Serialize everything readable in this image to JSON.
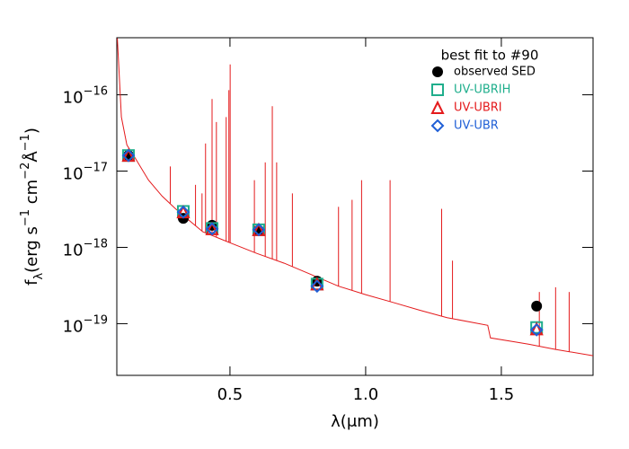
{
  "chart_data": {
    "type": "line",
    "xlabel": "λ(μm)",
    "ylabel_parts": [
      {
        "text": "f"
      },
      {
        "text": "λ",
        "shift": "sub"
      },
      {
        "text": "(erg s"
      },
      {
        "text": "−1",
        "shift": "sup"
      },
      {
        "text": " cm"
      },
      {
        "text": "−2",
        "shift": "sup"
      },
      {
        "text": "Å"
      },
      {
        "text": "−1",
        "shift": "sup"
      },
      {
        "text": ")"
      }
    ],
    "log_y": true,
    "xlim": [
      0.083,
      1.838
    ],
    "ylim": [
      2.1e-20,
      5.6e-16
    ],
    "xticks": [
      0.5,
      {
        "value": 1,
        "label": "1.0"
      },
      1.5
    ],
    "yticks": [
      {
        "value": 1e-16,
        "label": "10",
        "exponent": "−16"
      },
      {
        "value": 1e-17,
        "label": "10",
        "exponent": "−17"
      },
      {
        "value": 1e-18,
        "label": "10",
        "exponent": "−18"
      },
      {
        "value": 1e-19,
        "label": "10",
        "exponent": "−19"
      }
    ],
    "legend_title": "best fit to #90",
    "legend_position": "upper right",
    "model": {
      "color": "#e41a1c",
      "x": [
        0.085,
        0.1,
        0.12,
        0.15,
        0.2,
        0.25,
        0.3,
        0.36,
        0.4,
        0.5,
        0.6,
        0.7,
        0.8,
        0.9,
        1.0,
        1.1,
        1.2,
        1.3,
        1.45,
        1.46,
        1.6,
        1.7,
        1.838
      ],
      "values": [
        5.5e-16,
        5.1e-17,
        2.2e-17,
        1.5e-17,
        7.6e-18,
        4.7e-18,
        3.2e-18,
        2.1e-18,
        1.6e-18,
        1.15e-18,
        8.3e-19,
        6.2e-19,
        4.4e-19,
        3.1e-19,
        2.4e-19,
        1.9e-19,
        1.5e-19,
        1.2e-19,
        9.5e-20,
        6.5e-20,
        5.4e-20,
        4.6e-20,
        3.8e-20
      ]
    },
    "emission_lines": {
      "x": [
        0.28,
        0.373,
        0.397,
        0.41,
        0.434,
        0.45,
        0.486,
        0.496,
        0.5007,
        0.59,
        0.63,
        0.656,
        0.672,
        0.73,
        0.9,
        0.95,
        0.985,
        1.09,
        1.28,
        1.32,
        1.64,
        1.7,
        1.75
      ],
      "values": [
        1.15e-17,
        6.6e-18,
        5.1e-18,
        2.3e-17,
        8.8e-17,
        4.4e-17,
        5.1e-17,
        1.15e-16,
        2.5e-16,
        7.6e-18,
        1.3e-17,
        7.1e-17,
        1.3e-17,
        5.1e-18,
        3.4e-18,
        4.2e-18,
        7.6e-18,
        7.6e-18,
        3.2e-18,
        6.7e-19,
        2.6e-19,
        3e-19,
        2.6e-19
      ]
    },
    "x": [
      0.126,
      0.328,
      0.434,
      0.606,
      0.821,
      1.63
    ],
    "series": [
      {
        "name": "observed SED",
        "color": "#000000",
        "marker": "circle",
        "values": [
          1.6e-17,
          2.4e-18,
          1.95e-18,
          1.67e-18,
          3.6e-19,
          1.7e-19
        ]
      },
      {
        "name": "UV-UBRIH",
        "color": "#1fae8c",
        "marker": "square",
        "values": [
          1.6e-17,
          2.96e-18,
          1.77e-18,
          1.7e-18,
          3.3e-19,
          8.9e-20
        ]
      },
      {
        "name": "UV-UBRI",
        "color": "#e41a1c",
        "marker": "triangle",
        "values": [
          1.6e-17,
          2.9e-18,
          1.75e-18,
          1.7e-18,
          3.3e-19,
          8.5e-20
        ]
      },
      {
        "name": "UV-UBR",
        "color": "#1f5fd6",
        "marker": "diamond",
        "values": [
          1.6e-17,
          2.9e-18,
          1.75e-18,
          1.7e-18,
          3.1e-19,
          8.3e-20
        ]
      }
    ]
  }
}
